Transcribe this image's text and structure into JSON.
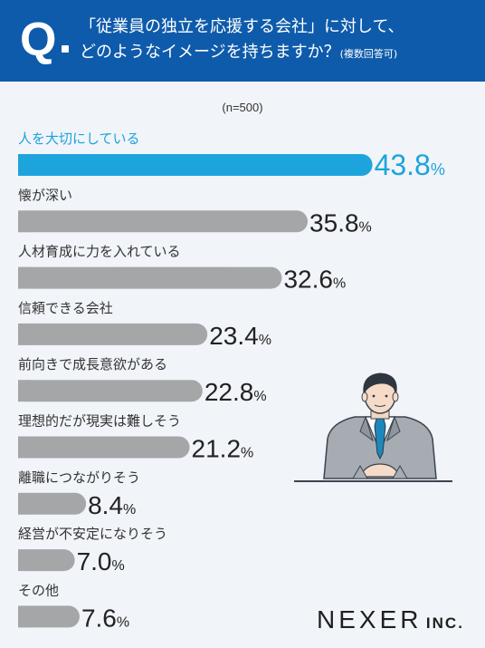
{
  "header": {
    "q_mark": "Q",
    "question_line1": "「従業員の独立を応援する会社」に対して、",
    "question_line2": "どのようなイメージを持ちますか？",
    "question_note": "(複数回答可)"
  },
  "chart_data": {
    "type": "bar",
    "orientation": "horizontal",
    "sample_size": "(n=500)",
    "unit": "%",
    "categories": [
      "人を大切にしている",
      "懐が深い",
      "人材育成に力を入れている",
      "信頼できる会社",
      "前向きで成長意欲がある",
      "理想的だが現実は難しそう",
      "離職につながりそう",
      "経営が不安定になりそう",
      "その他"
    ],
    "values": [
      43.8,
      35.8,
      32.6,
      23.4,
      22.8,
      21.2,
      8.4,
      7.0,
      7.6
    ],
    "value_labels": [
      "43.8",
      "35.8",
      "32.6",
      "23.4",
      "22.8",
      "21.2",
      "8.4",
      "7.0",
      "7.6"
    ],
    "highlight_index": 0,
    "colors": {
      "highlight": "#1da4dd",
      "default": "#a5a6a8",
      "label_default": "#333333"
    }
  },
  "logo": {
    "main": "NEXER",
    "sub": "INC."
  },
  "colors": {
    "header_bg": "#0e5bab",
    "panel_bg": "#f1f4f8"
  }
}
